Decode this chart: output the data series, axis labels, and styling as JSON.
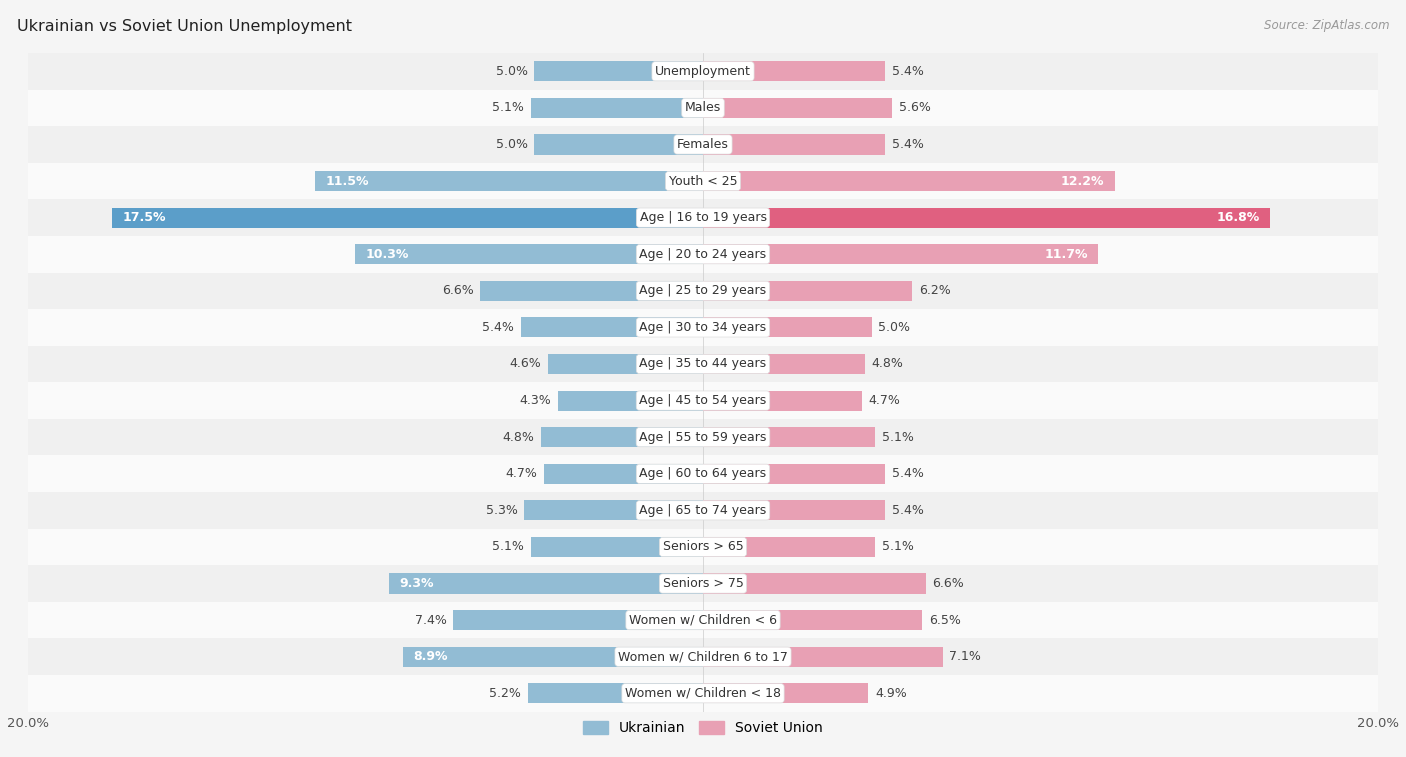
{
  "title": "Ukrainian vs Soviet Union Unemployment",
  "source": "Source: ZipAtlas.com",
  "categories": [
    "Unemployment",
    "Males",
    "Females",
    "Youth < 25",
    "Age | 16 to 19 years",
    "Age | 20 to 24 years",
    "Age | 25 to 29 years",
    "Age | 30 to 34 years",
    "Age | 35 to 44 years",
    "Age | 45 to 54 years",
    "Age | 55 to 59 years",
    "Age | 60 to 64 years",
    "Age | 65 to 74 years",
    "Seniors > 65",
    "Seniors > 75",
    "Women w/ Children < 6",
    "Women w/ Children 6 to 17",
    "Women w/ Children < 18"
  ],
  "ukrainian": [
    5.0,
    5.1,
    5.0,
    11.5,
    17.5,
    10.3,
    6.6,
    5.4,
    4.6,
    4.3,
    4.8,
    4.7,
    5.3,
    5.1,
    9.3,
    7.4,
    8.9,
    5.2
  ],
  "soviet_union": [
    5.4,
    5.6,
    5.4,
    12.2,
    16.8,
    11.7,
    6.2,
    5.0,
    4.8,
    4.7,
    5.1,
    5.4,
    5.4,
    5.1,
    6.6,
    6.5,
    7.1,
    4.9
  ],
  "ukrainian_color": "#92bcd4",
  "soviet_union_color": "#e8a0b4",
  "highlight_ukrainian_color": "#5b9ec9",
  "highlight_soviet_color": "#e06080",
  "row_bg_odd": "#f0f0f0",
  "row_bg_even": "#fafafa",
  "figure_bg": "#f5f5f5",
  "max_val": 20.0,
  "bar_height": 0.55,
  "label_fontsize": 9.0,
  "cat_fontsize": 9.0,
  "title_fontsize": 11.5,
  "source_fontsize": 8.5,
  "white_label_threshold": 8.0
}
